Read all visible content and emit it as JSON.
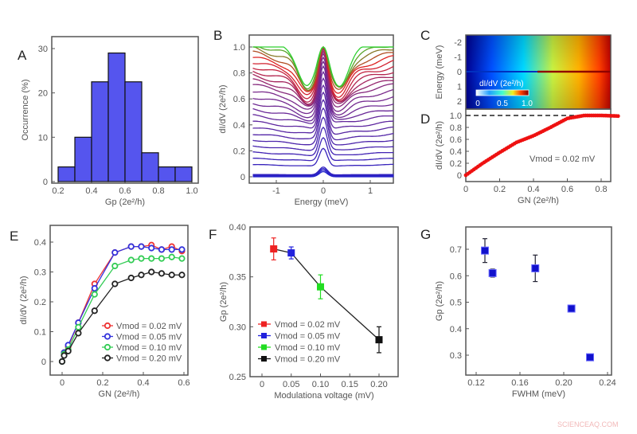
{
  "watermark": "SCIENCEAQ.COM",
  "chart_data": [
    {
      "panel": "A",
      "type": "bar",
      "xlabel": "Gp (2e²/h)",
      "ylabel": "Occurrence (%)",
      "bin_edges": [
        0.2,
        0.3,
        0.4,
        0.5,
        0.6,
        0.7,
        0.8,
        0.9,
        1.0
      ],
      "values": [
        3.3,
        10,
        22.5,
        29,
        22.5,
        6.5,
        3.3,
        3.3
      ],
      "xlim": [
        0.2,
        1.0
      ],
      "ylim": [
        0,
        33
      ],
      "xticks": [
        "0.2",
        "0.4",
        "0.6",
        "0.8",
        "1.0"
      ],
      "yticks": [
        "0",
        "10",
        "20",
        "30"
      ],
      "color": "#5555ee"
    },
    {
      "panel": "B",
      "type": "line",
      "xlabel": "Energy (meV)",
      "ylabel": "dI/dV (2e²/h)",
      "xlim": [
        -1.5,
        1.5
      ],
      "ylim": [
        -0.03,
        1.08
      ],
      "xticks": [
        "-1",
        "0",
        "1"
      ],
      "yticks": [
        "0",
        "0.2",
        "0.4",
        "0.6",
        "0.8",
        "1.0"
      ],
      "background_levels": [
        0,
        0.005,
        0.01,
        0.015,
        0.08,
        0.12,
        0.16,
        0.2,
        0.24,
        0.28,
        0.32,
        0.36,
        0.4,
        0.44,
        0.48,
        0.52,
        0.56,
        0.6,
        0.63,
        0.66,
        0.69,
        0.72,
        0.75,
        0.78,
        0.81,
        0.84,
        0.87,
        0.9
      ],
      "zero_bias_peak": 1.0,
      "colors": [
        "#2222cc",
        "#7a2a8a",
        "#e02020",
        "#30d030"
      ]
    },
    {
      "panel": "C",
      "type": "heatmap",
      "xlabel": "",
      "ylabel": "Energy (meV)",
      "yticks": [
        "-2",
        "-1",
        "0",
        "1",
        "2"
      ],
      "colorbar": {
        "label": "dI/dV (2e²/h)",
        "ticks": [
          "0",
          "0.5",
          "1.0"
        ]
      },
      "colors": [
        "#00008f",
        "#0060ff",
        "#00e0ff",
        "#f0f020",
        "#ff6000",
        "#8f0000"
      ]
    },
    {
      "panel": "D",
      "type": "scatter",
      "xlabel": "GN (2e²/h)",
      "ylabel": "dI/dV (2e²/h)",
      "annotation": "Vmod = 0.02 mV",
      "xlim": [
        0,
        0.9
      ],
      "ylim": [
        -0.05,
        1.05
      ],
      "xticks": [
        "0",
        "0.2",
        "0.4",
        "0.6",
        "0.8"
      ],
      "yticks": [
        "0",
        "0.2",
        "0.4",
        "0.6",
        "0.8",
        "1.0"
      ],
      "x": [
        0,
        0.1,
        0.2,
        0.3,
        0.4,
        0.5,
        0.6,
        0.7,
        0.8,
        0.9
      ],
      "y": [
        0,
        0.2,
        0.38,
        0.55,
        0.66,
        0.8,
        0.95,
        1.0,
        1.0,
        0.99
      ],
      "reference_line": 1.0,
      "color": "#ee1111"
    },
    {
      "panel": "E",
      "type": "line",
      "xlabel": "GN (2e²/h)",
      "ylabel": "dI/dV (2e²/h)",
      "xlim": [
        -0.03,
        0.63
      ],
      "ylim": [
        -0.03,
        0.43
      ],
      "xticks": [
        "0",
        "0.2",
        "0.4",
        "0.6"
      ],
      "yticks": [
        "0",
        "0.1",
        "0.2",
        "0.3",
        "0.4"
      ],
      "legend": "bottom-right",
      "x": [
        0,
        0.01,
        0.03,
        0.08,
        0.16,
        0.26,
        0.34,
        0.39,
        0.44,
        0.49,
        0.54,
        0.59
      ],
      "series": [
        {
          "name": "Vmod = 0.02 mV",
          "color": "#ee3333",
          "values": [
            0,
            0.03,
            0.05,
            0.13,
            0.26,
            0.365,
            0.385,
            0.385,
            0.39,
            0.375,
            0.385,
            0.37
          ]
        },
        {
          "name": "Vmod = 0.05 mV",
          "color": "#3333dd",
          "values": [
            0,
            0.03,
            0.055,
            0.13,
            0.245,
            0.365,
            0.385,
            0.385,
            0.38,
            0.375,
            0.375,
            0.375
          ]
        },
        {
          "name": "Vmod = 0.10 mV",
          "color": "#33cc55",
          "values": [
            0,
            0.025,
            0.04,
            0.115,
            0.225,
            0.32,
            0.34,
            0.345,
            0.345,
            0.345,
            0.35,
            0.345
          ]
        },
        {
          "name": "Vmod = 0.20 mV",
          "color": "#222222",
          "values": [
            0,
            0.02,
            0.035,
            0.095,
            0.17,
            0.26,
            0.28,
            0.29,
            0.3,
            0.295,
            0.29,
            0.29
          ]
        }
      ]
    },
    {
      "panel": "F",
      "type": "line",
      "xlabel": "Modulationa voltage (mV)",
      "ylabel": "Gp (2e²/h)",
      "xlim": [
        -0.02,
        0.23
      ],
      "ylim": [
        0.25,
        0.4
      ],
      "xticks": [
        "0",
        "0.05",
        "0.10",
        "0.15",
        "0.20"
      ],
      "yticks": [
        "0.25",
        "0.30",
        "0.35",
        "0.40"
      ],
      "legend": "bottom-left",
      "points": [
        {
          "name": "Vmod = 0.02 mV",
          "x": 0.02,
          "y": 0.378,
          "err": 0.011,
          "color": "#ee2222"
        },
        {
          "name": "Vmod = 0.05 mV",
          "x": 0.05,
          "y": 0.374,
          "err": 0.006,
          "color": "#2222dd"
        },
        {
          "name": "Vmod = 0.10 mV",
          "x": 0.1,
          "y": 0.34,
          "err": 0.012,
          "color": "#22dd22"
        },
        {
          "name": "Vmod = 0.20 mV",
          "x": 0.2,
          "y": 0.287,
          "err": 0.013,
          "color": "#111111"
        }
      ]
    },
    {
      "panel": "G",
      "type": "scatter",
      "xlabel": "FWHM (meV)",
      "ylabel": "Gp (2e²/h)",
      "xlim": [
        0.11,
        0.25
      ],
      "ylim": [
        0.23,
        0.77
      ],
      "xticks": [
        "0.12",
        "0.16",
        "0.20",
        "0.24"
      ],
      "yticks": [
        "0.3",
        "0.4",
        "0.5",
        "0.6",
        "0.7"
      ],
      "x": [
        0.128,
        0.135,
        0.174,
        0.207,
        0.224
      ],
      "y": [
        0.695,
        0.61,
        0.628,
        0.476,
        0.292
      ],
      "err": [
        0.045,
        0.015,
        0.05,
        0.01,
        0.01
      ],
      "color": "#1111cc"
    }
  ]
}
